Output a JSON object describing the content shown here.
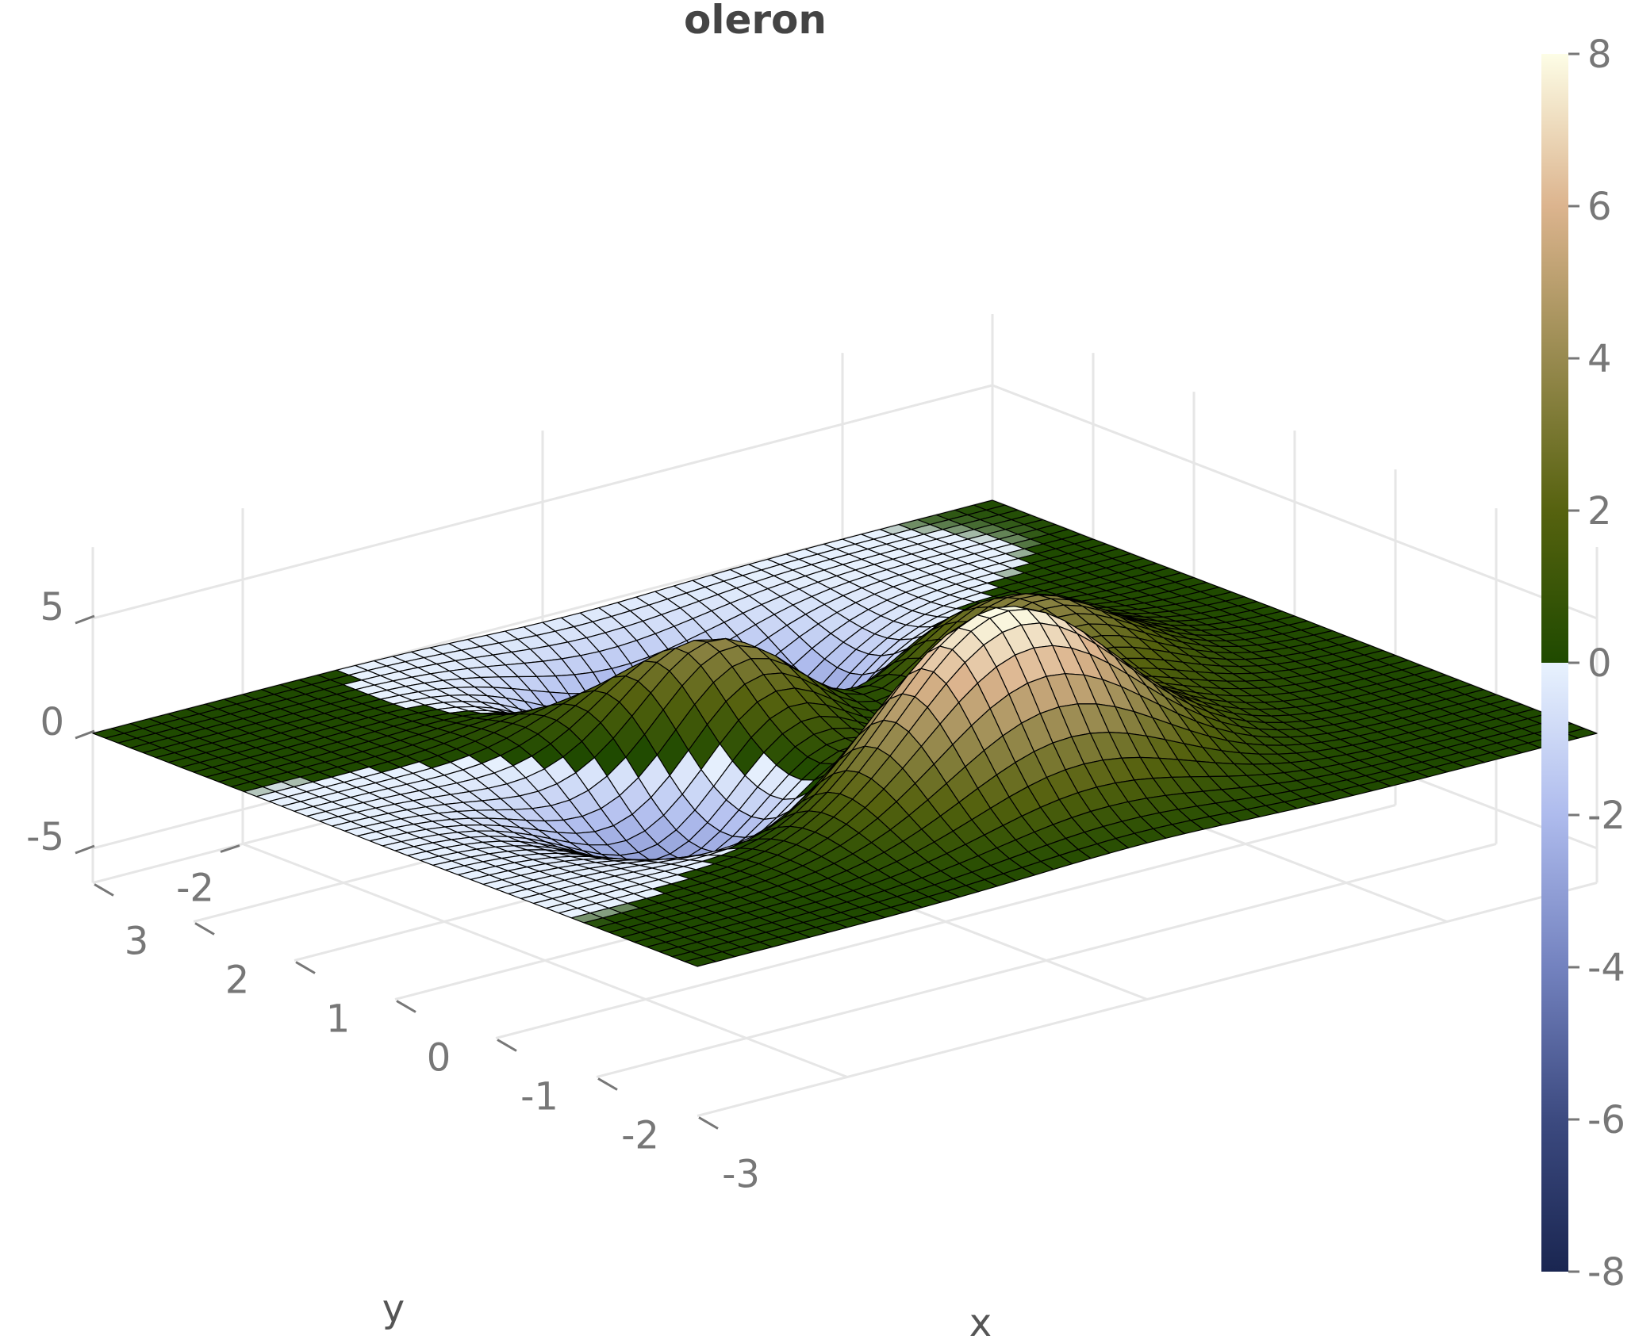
{
  "chart_data": {
    "type": "surface",
    "title": "oleron",
    "xlabel": "x",
    "ylabel": "y",
    "zlabel": "",
    "colorscale_name": "oleron",
    "function": "peaks",
    "x_range": [
      -3,
      3
    ],
    "y_range": [
      -3,
      3
    ],
    "z_range": [
      -6.5,
      8.1
    ],
    "grid_resolution": 49,
    "x_ticks": [
      "-3",
      "-2",
      "-1",
      "0",
      "1",
      "2",
      "3"
    ],
    "x_tick_values": [
      -3,
      -2,
      -1,
      0,
      1,
      2,
      3
    ],
    "y_ticks": [
      "-2",
      "0",
      "2"
    ],
    "y_tick_values": [
      -2,
      0,
      2
    ],
    "z_ticks": [
      "-5",
      "0",
      "5"
    ],
    "z_tick_values": [
      -5,
      0,
      5
    ],
    "colorbar": {
      "range": [
        -8,
        8
      ],
      "ticks": [
        "8",
        "6",
        "4",
        "2",
        "0",
        "-2",
        "-4",
        "-6",
        "-8"
      ],
      "tick_values": [
        8,
        6,
        4,
        2,
        0,
        -2,
        -4,
        -6,
        -8
      ]
    },
    "colors": {
      "oleron_stops": [
        [
          0.0,
          "#1a2651"
        ],
        [
          0.125,
          "#3c4a80"
        ],
        [
          0.25,
          "#7382bf"
        ],
        [
          0.375,
          "#aebbed"
        ],
        [
          0.4999,
          "#e8f2fe"
        ],
        [
          0.5,
          "#1f4a00"
        ],
        [
          0.625,
          "#56620f"
        ],
        [
          0.75,
          "#988a4f"
        ],
        [
          0.875,
          "#dcb48e"
        ],
        [
          1.0,
          "#fdfde6"
        ]
      ],
      "mesh_line": "#000000",
      "gridline": "#e6e6e6"
    },
    "grid": true
  }
}
